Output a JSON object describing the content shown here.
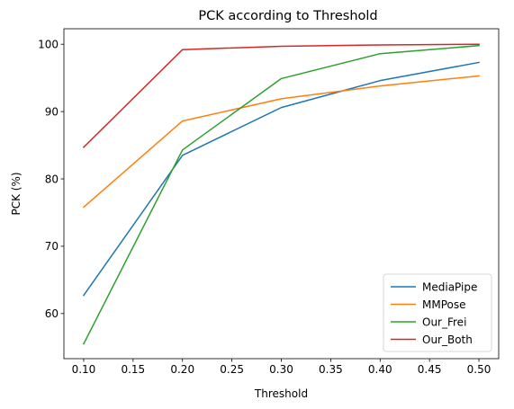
{
  "chart_data": {
    "type": "line",
    "title": "PCK according to Threshold",
    "xlabel": "Threshold",
    "ylabel": "PCK (%)",
    "x": [
      0.1,
      0.2,
      0.3,
      0.4,
      0.5
    ],
    "xlim": [
      0.08,
      0.52
    ],
    "ylim": [
      53.3,
      102.3
    ],
    "xticks": [
      "0.10",
      "0.15",
      "0.20",
      "0.25",
      "0.30",
      "0.35",
      "0.40",
      "0.45",
      "0.50"
    ],
    "yticks": [
      "60",
      "70",
      "80",
      "90",
      "100"
    ],
    "grid": false,
    "legend_position": "bottom-right",
    "series": [
      {
        "name": "MediaPipe",
        "color": "#1f77b4",
        "values": [
          62.7,
          83.5,
          90.6,
          94.6,
          97.3
        ]
      },
      {
        "name": "MMPose",
        "color": "#ff7f0e",
        "values": [
          75.8,
          88.6,
          91.9,
          93.8,
          95.3
        ]
      },
      {
        "name": "Our_Frei",
        "color": "#2ca02c",
        "values": [
          55.5,
          84.3,
          94.9,
          98.6,
          99.8
        ]
      },
      {
        "name": "Our_Both",
        "color": "#d62728",
        "values": [
          84.7,
          99.2,
          99.7,
          99.9,
          100.0
        ]
      }
    ]
  }
}
